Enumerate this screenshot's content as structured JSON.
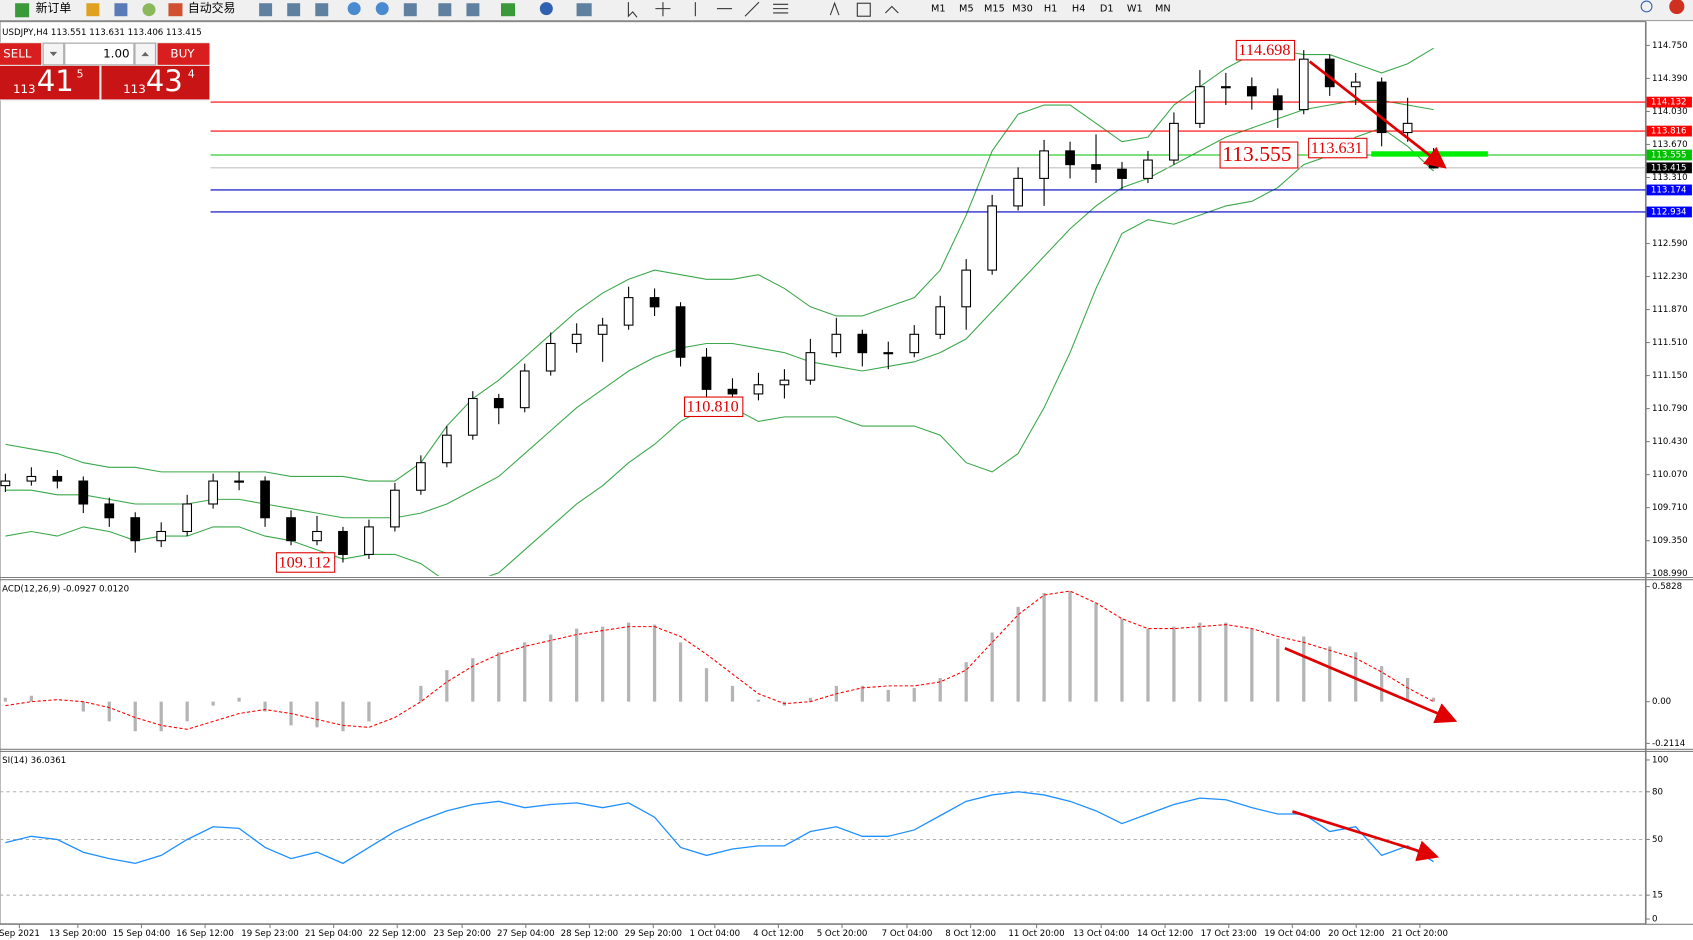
{
  "toolbar": {
    "new_order": "新订单",
    "auto_trading": "自动交易",
    "timeframes": [
      "M1",
      "M5",
      "M15",
      "M30",
      "H1",
      "H4",
      "D1",
      "W1",
      "MN"
    ]
  },
  "trade_panel": {
    "sell": "SELL",
    "buy": "BUY",
    "lots": "1.00",
    "bid": [
      "113",
      "41",
      "5"
    ],
    "ask": [
      "113",
      "43",
      "4"
    ]
  },
  "chart_data": [
    {
      "type": "candlestick",
      "title": "USDJPY,H4  113.551 113.631 113.406 113.415",
      "ylim": [
        108.966,
        114.986
      ],
      "yticks": [
        {
          "value": 114.75,
          "label": "114.750"
        },
        {
          "value": 114.39,
          "label": "114.390"
        },
        {
          "value": 114.03,
          "label": "114.030"
        },
        {
          "value": 113.67,
          "label": "113.670"
        },
        {
          "value": 113.31,
          "label": "113.310"
        },
        {
          "value": 112.59,
          "label": "112.590"
        },
        {
          "value": 112.23,
          "label": "112.230"
        },
        {
          "value": 111.87,
          "label": "111.870"
        },
        {
          "value": 111.51,
          "label": "111.510"
        },
        {
          "value": 111.15,
          "label": "111.150"
        },
        {
          "value": 110.79,
          "label": "110.790"
        },
        {
          "value": 110.43,
          "label": "110.430"
        },
        {
          "value": 110.07,
          "label": "110.070"
        },
        {
          "value": 109.71,
          "label": "109.710"
        },
        {
          "value": 109.35,
          "label": "109.350"
        },
        {
          "value": 108.99,
          "label": "108.990"
        }
      ],
      "up_color": "#ffffff",
      "down_color": "#000000",
      "ohlc": [
        [
          109.95,
          110.08,
          109.88,
          110.0
        ],
        [
          110.0,
          110.15,
          109.95,
          110.05
        ],
        [
          110.05,
          110.12,
          109.92,
          110.0
        ],
        [
          110.0,
          110.05,
          109.65,
          109.75
        ],
        [
          109.75,
          109.82,
          109.5,
          109.6
        ],
        [
          109.6,
          109.66,
          109.22,
          109.35
        ],
        [
          109.35,
          109.55,
          109.28,
          109.45
        ],
        [
          109.45,
          109.85,
          109.4,
          109.75
        ],
        [
          109.75,
          110.08,
          109.7,
          110.0
        ],
        [
          110.0,
          110.1,
          109.9,
          110.0
        ],
        [
          110.0,
          110.05,
          109.5,
          109.6
        ],
        [
          109.6,
          109.68,
          109.3,
          109.35
        ],
        [
          109.35,
          109.62,
          109.3,
          109.45
        ],
        [
          109.45,
          109.5,
          109.112,
          109.2
        ],
        [
          109.2,
          109.58,
          109.15,
          109.5
        ],
        [
          109.5,
          109.98,
          109.45,
          109.9
        ],
        [
          109.9,
          110.28,
          109.85,
          110.2
        ],
        [
          110.2,
          110.6,
          110.15,
          110.5
        ],
        [
          110.5,
          110.98,
          110.45,
          110.9
        ],
        [
          110.9,
          110.95,
          110.62,
          110.8
        ],
        [
          110.8,
          111.28,
          110.75,
          111.2
        ],
        [
          111.2,
          111.62,
          111.15,
          111.5
        ],
        [
          111.5,
          111.72,
          111.4,
          111.6
        ],
        [
          111.6,
          111.78,
          111.3,
          111.7
        ],
        [
          111.7,
          112.12,
          111.65,
          112.0
        ],
        [
          112.0,
          112.1,
          111.8,
          111.9
        ],
        [
          111.9,
          111.95,
          111.25,
          111.35
        ],
        [
          111.35,
          111.45,
          110.92,
          111.0
        ],
        [
          111.0,
          111.12,
          110.81,
          110.95
        ],
        [
          110.95,
          111.18,
          110.88,
          111.05
        ],
        [
          111.05,
          111.22,
          110.9,
          111.1
        ],
        [
          111.1,
          111.55,
          111.05,
          111.4
        ],
        [
          111.4,
          111.78,
          111.35,
          111.6
        ],
        [
          111.6,
          111.65,
          111.25,
          111.4
        ],
        [
          111.4,
          111.52,
          111.22,
          111.4
        ],
        [
          111.4,
          111.7,
          111.35,
          111.6
        ],
        [
          111.6,
          112.02,
          111.55,
          111.9
        ],
        [
          111.9,
          112.42,
          111.65,
          112.3
        ],
        [
          112.3,
          113.12,
          112.25,
          113.0
        ],
        [
          113.0,
          113.42,
          112.95,
          113.3
        ],
        [
          113.3,
          113.72,
          113.0,
          113.6
        ],
        [
          113.6,
          113.7,
          113.3,
          113.45
        ],
        [
          113.45,
          113.78,
          113.25,
          113.4
        ],
        [
          113.4,
          113.48,
          113.18,
          113.3
        ],
        [
          113.3,
          113.6,
          113.25,
          113.5
        ],
        [
          113.5,
          114.02,
          113.45,
          113.9
        ],
        [
          113.9,
          114.48,
          113.85,
          114.3
        ],
        [
          114.3,
          114.45,
          114.1,
          114.3
        ],
        [
          114.3,
          114.4,
          114.05,
          114.2
        ],
        [
          114.2,
          114.28,
          113.85,
          114.05
        ],
        [
          114.05,
          114.698,
          114.0,
          114.6
        ],
        [
          114.6,
          114.65,
          114.2,
          114.3
        ],
        [
          114.3,
          114.45,
          114.1,
          114.35
        ],
        [
          114.35,
          114.4,
          113.65,
          113.8
        ],
        [
          113.8,
          114.18,
          113.7,
          113.9
        ],
        [
          113.551,
          113.631,
          113.406,
          113.415
        ]
      ],
      "bands": {
        "color": "#3aa84a",
        "upper": [
          110.4,
          110.35,
          110.3,
          110.2,
          110.15,
          110.15,
          110.1,
          110.1,
          110.1,
          110.1,
          110.1,
          110.05,
          110.05,
          110.05,
          110.0,
          110.0,
          110.2,
          110.6,
          110.9,
          111.1,
          111.35,
          111.6,
          111.85,
          112.05,
          112.2,
          112.3,
          112.25,
          112.2,
          112.2,
          112.25,
          112.1,
          111.9,
          111.8,
          111.8,
          111.9,
          112.0,
          112.3,
          112.9,
          113.6,
          114.0,
          114.1,
          114.1,
          113.9,
          113.7,
          113.75,
          114.1,
          114.3,
          114.5,
          114.65,
          114.7,
          114.65,
          114.65,
          114.55,
          114.45,
          114.55,
          114.72
        ],
        "middle": [
          109.9,
          109.9,
          109.85,
          109.85,
          109.8,
          109.75,
          109.75,
          109.75,
          109.8,
          109.8,
          109.75,
          109.7,
          109.65,
          109.6,
          109.6,
          109.6,
          109.65,
          109.75,
          109.9,
          110.05,
          110.3,
          110.55,
          110.8,
          111.0,
          111.2,
          111.35,
          111.45,
          111.5,
          111.5,
          111.45,
          111.4,
          111.3,
          111.25,
          111.2,
          111.25,
          111.3,
          111.4,
          111.55,
          111.85,
          112.15,
          112.45,
          112.75,
          113.0,
          113.2,
          113.3,
          113.45,
          113.6,
          113.75,
          113.85,
          113.95,
          114.05,
          114.1,
          114.15,
          114.15,
          114.1,
          114.05
        ],
        "lower": [
          109.4,
          109.45,
          109.4,
          109.5,
          109.45,
          109.35,
          109.4,
          109.4,
          109.5,
          109.5,
          109.4,
          109.35,
          109.25,
          109.15,
          109.2,
          109.2,
          109.1,
          108.9,
          108.9,
          109.0,
          109.25,
          109.5,
          109.75,
          109.95,
          110.2,
          110.4,
          110.65,
          110.8,
          110.8,
          110.65,
          110.7,
          110.7,
          110.7,
          110.6,
          110.6,
          110.6,
          110.5,
          110.2,
          110.1,
          110.3,
          110.8,
          111.4,
          112.1,
          112.7,
          112.85,
          112.8,
          112.9,
          113.0,
          113.05,
          113.2,
          113.45,
          113.55,
          113.75,
          113.85,
          113.65,
          113.38
        ]
      },
      "hlines": [
        {
          "value": 114.132,
          "color": "#ff0000",
          "box": "#ff0000"
        },
        {
          "value": 113.816,
          "color": "#ff0000",
          "box": "#ff0000"
        },
        {
          "value": 113.555,
          "color": "#00c000",
          "box": "#00c000"
        },
        {
          "value": 113.415,
          "color": "#c0c0c0",
          "box": "#000000"
        },
        {
          "value": 113.174,
          "color": "#0000c0",
          "box": "#0000ff"
        },
        {
          "value": 112.934,
          "color": "#0000c0",
          "box": "#0000ff"
        }
      ],
      "annotations": [
        114.698,
        113.555,
        113.631,
        {
          "value": 110.81,
          "label": "110.810"
        },
        109.112
      ]
    },
    {
      "type": "macd",
      "title": "ACD(12,26,9) -0.0927 0.0120",
      "ylim": [
        -0.233,
        0.615
      ],
      "yticks": [
        0.5828,
        {
          "value": 0,
          "label": "0.00"
        },
        -0.2114
      ],
      "histogram": {
        "color": "#b4b4b4",
        "values": [
          0.02,
          0.03,
          0.0,
          -0.05,
          -0.1,
          -0.15,
          -0.15,
          -0.1,
          -0.02,
          0.02,
          -0.05,
          -0.12,
          -0.13,
          -0.15,
          -0.1,
          0.0,
          0.08,
          0.16,
          0.22,
          0.25,
          0.3,
          0.34,
          0.37,
          0.38,
          0.4,
          0.39,
          0.3,
          0.17,
          0.08,
          0.01,
          -0.02,
          0.02,
          0.08,
          0.08,
          0.06,
          0.07,
          0.12,
          0.2,
          0.35,
          0.48,
          0.55,
          0.56,
          0.5,
          0.42,
          0.37,
          0.38,
          0.4,
          0.4,
          0.37,
          0.32,
          0.33,
          0.28,
          0.25,
          0.18,
          0.12,
          0.02
        ]
      },
      "signal": {
        "color": "#ff0000",
        "values": [
          -0.02,
          0.0,
          0.01,
          0.0,
          -0.03,
          -0.08,
          -0.12,
          -0.14,
          -0.1,
          -0.06,
          -0.04,
          -0.06,
          -0.09,
          -0.12,
          -0.13,
          -0.08,
          0.0,
          0.1,
          0.18,
          0.24,
          0.28,
          0.31,
          0.34,
          0.36,
          0.38,
          0.38,
          0.33,
          0.24,
          0.14,
          0.04,
          -0.01,
          0.0,
          0.04,
          0.07,
          0.08,
          0.08,
          0.1,
          0.16,
          0.3,
          0.44,
          0.54,
          0.56,
          0.5,
          0.42,
          0.37,
          0.37,
          0.38,
          0.39,
          0.37,
          0.33,
          0.3,
          0.26,
          0.22,
          0.15,
          0.07,
          0.0
        ]
      }
    },
    {
      "type": "line",
      "title": "SI(14) 36.0361",
      "ylim": [
        -3,
        105
      ],
      "yticks": [
        100,
        80,
        50,
        15,
        0
      ],
      "color": "#1e90ff",
      "values": [
        48,
        52,
        50,
        42,
        38,
        35,
        40,
        50,
        58,
        57,
        45,
        38,
        42,
        35,
        45,
        55,
        62,
        68,
        72,
        74,
        70,
        72,
        73,
        70,
        73,
        64,
        45,
        40,
        44,
        46,
        46,
        55,
        58,
        52,
        52,
        56,
        65,
        74,
        78,
        80,
        78,
        74,
        68,
        60,
        66,
        72,
        76,
        75,
        70,
        66,
        66,
        55,
        58,
        40,
        46,
        36.0361
      ],
      "xticks": [
        {
          "value": 0.54,
          "label": "Sep 2021"
        },
        {
          "value": 2.79,
          "label": "13 Sep 20:00"
        },
        {
          "value": 5.24,
          "label": "15 Sep 04:00"
        },
        {
          "value": 7.69,
          "label": "16 Sep 12:00"
        },
        {
          "value": 10.19,
          "label": "19 Sep 23:00"
        },
        {
          "value": 12.64,
          "label": "21 Sep 04:00"
        },
        {
          "value": 15.09,
          "label": "22 Sep 12:00"
        },
        {
          "value": 17.59,
          "label": "23 Sep 20:00"
        },
        {
          "value": 20.04,
          "label": "27 Sep 04:00"
        },
        {
          "value": 22.49,
          "label": "28 Sep 12:00"
        },
        {
          "value": 24.95,
          "label": "29 Sep 20:00"
        },
        {
          "value": 27.32,
          "label": "1 Oct 04:00"
        },
        {
          "value": 29.77,
          "label": "4 Oct 12:00"
        },
        {
          "value": 32.22,
          "label": "5 Oct 20:00"
        },
        {
          "value": 34.72,
          "label": "7 Oct 04:00"
        },
        {
          "value": 37.17,
          "label": "8 Oct 12:00"
        },
        {
          "value": 39.71,
          "label": "11 Oct 20:00"
        },
        {
          "value": 42.2,
          "label": "13 Oct 04:00"
        },
        {
          "value": 44.66,
          "label": "14 Oct 12:00"
        },
        {
          "value": 47.11,
          "label": "17 Oct 23:00"
        },
        {
          "value": 49.56,
          "label": "19 Oct 04:00"
        },
        {
          "value": 52.02,
          "label": "20 Oct 12:00"
        },
        {
          "value": 54.47,
          "label": "21 Oct 20:00"
        }
      ]
    }
  ]
}
